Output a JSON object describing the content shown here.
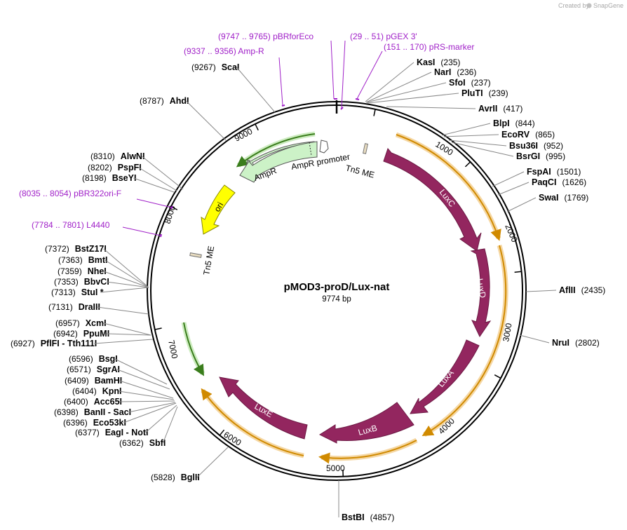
{
  "watermark": {
    "created_by": "Created by",
    "brand": "SnapGene"
  },
  "plasmid": {
    "name": "pMOD3-proD/Lux-nat",
    "length_label": "9774 bp"
  },
  "ticks": [
    "1000",
    "2000",
    "3000",
    "4000",
    "5000",
    "6000",
    "7000",
    "8000",
    "9000"
  ],
  "features": {
    "luxc": "LuxC",
    "luxd": "LuxD",
    "luxa": "LuxA",
    "luxb": "LuxB",
    "luxe": "LuxE",
    "ampr": "AmpR",
    "ampr_promoter": "AmpR promoter",
    "ori": "ori",
    "tn5me_top": "Tn5 ME",
    "tn5me_left": "Tn5 ME"
  },
  "primers": [
    {
      "range": "(9747 .. 9765)",
      "name": "pBRforEco"
    },
    {
      "range": "(29 .. 51)",
      "name": "pGEX 3'"
    },
    {
      "range": "(151 .. 170)",
      "name": "pRS-marker"
    },
    {
      "range": "(9337 .. 9356)",
      "name": "Amp-R"
    },
    {
      "range": "(8035 .. 8054)",
      "name": "pBR322ori-F"
    },
    {
      "range": "(7784 .. 7801)",
      "name": "L4440"
    }
  ],
  "sites_right": [
    {
      "name": "KasI",
      "pos": "(235)"
    },
    {
      "name": "NarI",
      "pos": "(236)"
    },
    {
      "name": "SfoI",
      "pos": "(237)"
    },
    {
      "name": "PluTI",
      "pos": "(239)"
    },
    {
      "name": "AvrII",
      "pos": "(417)"
    },
    {
      "name": "BlpI",
      "pos": "(844)"
    },
    {
      "name": "EcoRV",
      "pos": "(865)"
    },
    {
      "name": "Bsu36I",
      "pos": "(952)"
    },
    {
      "name": "BsrGI",
      "pos": "(995)"
    },
    {
      "name": "FspAI",
      "pos": "(1501)"
    },
    {
      "name": "PaqCI",
      "pos": "(1626)"
    },
    {
      "name": "SwaI",
      "pos": "(1769)"
    },
    {
      "name": "AflII",
      "pos": "(2435)"
    },
    {
      "name": "NruI",
      "pos": "(2802)"
    },
    {
      "name": "BstBI",
      "pos": "(4857)"
    }
  ],
  "sites_left": [
    {
      "name": "ScaI",
      "pos": "(9267)"
    },
    {
      "name": "AhdI",
      "pos": "(8787)"
    },
    {
      "name": "AlwNI",
      "pos": "(8310)"
    },
    {
      "name": "PspFI",
      "pos": "(8202)"
    },
    {
      "name": "BseYI",
      "pos": "(8198)"
    },
    {
      "name": "BstZ17I",
      "pos": "(7372)"
    },
    {
      "name": "BmtI",
      "pos": "(7363)"
    },
    {
      "name": "NheI",
      "pos": "(7359)"
    },
    {
      "name": "BbvCI",
      "pos": "(7353)"
    },
    {
      "name": "StuI *",
      "pos": "(7313)"
    },
    {
      "name": "DraIII",
      "pos": "(7131)"
    },
    {
      "name": "XcmI",
      "pos": "(6957)"
    },
    {
      "name": "PpuMI",
      "pos": "(6942)"
    },
    {
      "name": "PflFI  - Tth111I",
      "pos": "(6927)"
    },
    {
      "name": "BsgI",
      "pos": "(6596)"
    },
    {
      "name": "SgrAI",
      "pos": "(6571)"
    },
    {
      "name": "BamHI",
      "pos": "(6409)"
    },
    {
      "name": "KpnI",
      "pos": "(6404)"
    },
    {
      "name": "Acc65I",
      "pos": "(6400)"
    },
    {
      "name": "BanII  - SacI",
      "pos": "(6398)"
    },
    {
      "name": "Eco53kI",
      "pos": "(6396)"
    },
    {
      "name": "EagI  - NotI",
      "pos": "(6377)"
    },
    {
      "name": "SbfI",
      "pos": "(6362)"
    },
    {
      "name": "BglII",
      "pos": "(5828)"
    }
  ]
}
